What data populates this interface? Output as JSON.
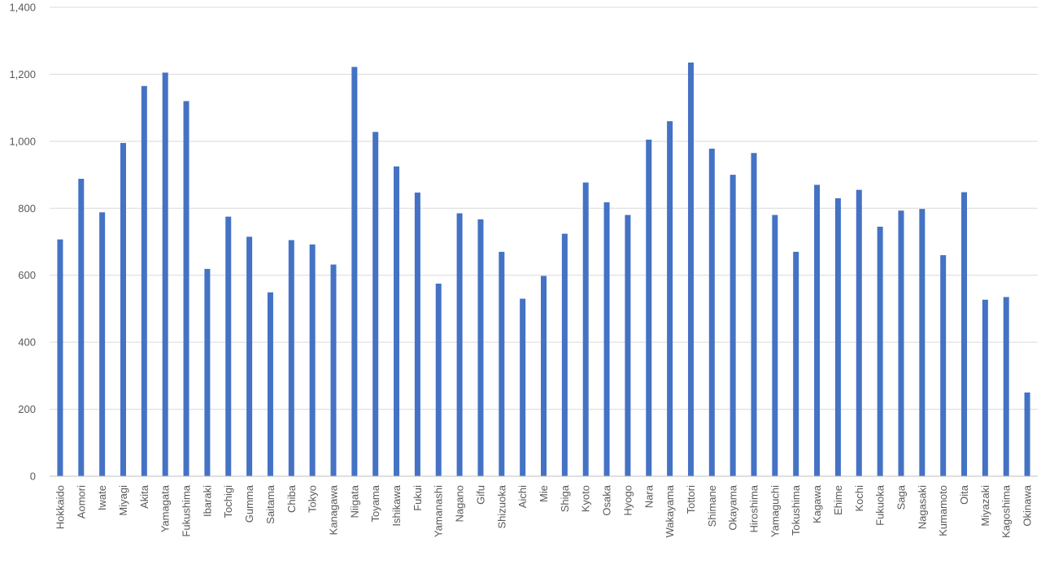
{
  "chart_data": {
    "type": "bar",
    "title": "",
    "xlabel": "",
    "ylabel": "",
    "ylim": [
      0,
      1400
    ],
    "yticks": [
      0,
      200,
      400,
      600,
      800,
      1000,
      1200,
      1400
    ],
    "ytick_labels": [
      "0",
      "200",
      "400",
      "600",
      "800",
      "1,000",
      "1,200",
      "1,400"
    ],
    "grid": true,
    "legend": "none",
    "bar_color": "#4472C4",
    "categories": [
      "Hokkaido",
      "Aomori",
      "Iwate",
      "Miyagi",
      "Akita",
      "Yamagata",
      "Fukushima",
      "Ibaraki",
      "Tochigi",
      "Gumma",
      "Saitama",
      "Chiba",
      "Tokyo",
      "Kanagawa",
      "Niigata",
      "Toyama",
      "Ishikawa",
      "Fukui",
      "Yamanashi",
      "Nagano",
      "Gifu",
      "Shizuoka",
      "Aichi",
      "Mie",
      "Shiga",
      "Kyoto",
      "Osaka",
      "Hyogo",
      "Nara",
      "Wakayama",
      "Tottori",
      "Shimane",
      "Okayama",
      "Hiroshima",
      "Yamaguchi",
      "Tokushima",
      "Kagawa",
      "Ehime",
      "Kochi",
      "Fukuoka",
      "Saga",
      "Nagasaki",
      "Kumamoto",
      "Oita",
      "Miyazaki",
      "Kagoshima",
      "Okinawa"
    ],
    "values": [
      707,
      888,
      788,
      995,
      1165,
      1205,
      1120,
      619,
      775,
      715,
      549,
      705,
      692,
      632,
      1222,
      1028,
      925,
      847,
      575,
      785,
      767,
      670,
      530,
      598,
      724,
      877,
      818,
      780,
      1005,
      1060,
      1235,
      978,
      900,
      965,
      780,
      670,
      870,
      830,
      855,
      745,
      793,
      798,
      660,
      848,
      527,
      535,
      250
    ]
  }
}
